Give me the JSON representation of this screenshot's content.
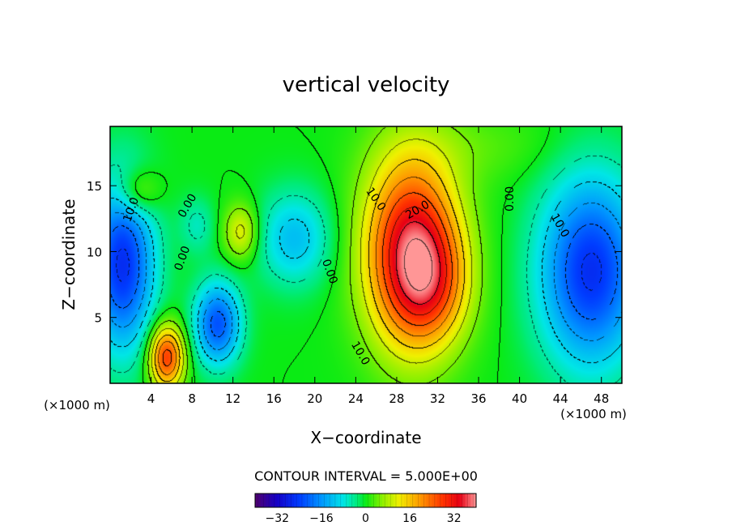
{
  "chart_data": {
    "type": "heatmap",
    "title": "vertical velocity",
    "xlabel": "X−coordinate",
    "ylabel": "Z−coordinate",
    "x_unit_left": "(×1000 m)",
    "x_unit_right": "(×1000 m)",
    "xlim": [
      0,
      50
    ],
    "ylim": [
      0,
      19.5
    ],
    "x_ticks": [
      4,
      8,
      12,
      16,
      20,
      24,
      28,
      32,
      36,
      40,
      44,
      48
    ],
    "y_ticks": [
      5,
      10,
      15
    ],
    "contour_interval_text": "CONTOUR INTERVAL = 5.000E+00",
    "contour_labels": [
      {
        "text": "0.00",
        "x": 7.5,
        "z": 13.5,
        "angle": 60
      },
      {
        "text": "0.00",
        "x": 7.0,
        "z": 9.5,
        "angle": 70
      },
      {
        "text": "0.00",
        "x": 21.5,
        "z": 8.5,
        "angle": -70
      },
      {
        "text": "0.00",
        "x": 39.0,
        "z": 14.0,
        "angle": 90
      },
      {
        "text": "10.0",
        "x": 2.0,
        "z": 13.2,
        "angle": 70
      },
      {
        "text": "10.0",
        "x": 26.0,
        "z": 14.0,
        "angle": -55
      },
      {
        "text": "20.0",
        "x": 30.0,
        "z": 13.2,
        "angle": 30
      },
      {
        "text": "10.0",
        "x": 24.5,
        "z": 2.3,
        "angle": -60
      },
      {
        "text": "10.0",
        "x": 44.0,
        "z": 12.0,
        "angle": -60
      }
    ],
    "extrema": [
      {
        "x": 29.5,
        "z": 10.0,
        "value": 36,
        "sx": 3.2,
        "sz": 5.0
      },
      {
        "x": 31.5,
        "z": 7.5,
        "value": 12,
        "sx": 2.5,
        "sz": 3.0
      },
      {
        "x": 5.5,
        "z": 2.0,
        "value": 28,
        "sx": 1.2,
        "sz": 1.7
      },
      {
        "x": 12.8,
        "z": 11.5,
        "value": 12,
        "sx": 1.2,
        "sz": 1.5
      },
      {
        "x": 2.7,
        "z": 14.5,
        "value": 10,
        "sx": 1.5,
        "sz": 1.3
      },
      {
        "x": 1.2,
        "z": 9.0,
        "value": -26,
        "sx": 2.2,
        "sz": 4.5
      },
      {
        "x": 10.5,
        "z": 4.5,
        "value": -22,
        "sx": 1.6,
        "sz": 2.2
      },
      {
        "x": 47.0,
        "z": 8.5,
        "value": -26,
        "sx": 3.5,
        "sz": 5.0
      },
      {
        "x": 18.0,
        "z": 11.0,
        "value": -12,
        "sx": 2.5,
        "sz": 2.5
      },
      {
        "x": 8.5,
        "z": 12.0,
        "value": -6,
        "sx": 1.2,
        "sz": 1.5
      },
      {
        "x": 36.0,
        "z": 18.0,
        "value": 3,
        "sx": 6.0,
        "sz": 2.0
      }
    ],
    "colorbar": {
      "min": -40,
      "max": 40,
      "tick_values": [
        -32,
        -16,
        0,
        16,
        32
      ],
      "tick_labels": [
        "−32",
        "−16",
        "0",
        "16",
        "32"
      ]
    }
  }
}
